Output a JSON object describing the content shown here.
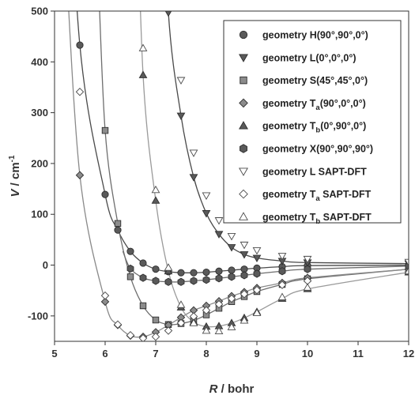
{
  "chart_data": {
    "type": "line",
    "xlabel": {
      "italic": "R",
      "rest": " / bohr"
    },
    "ylabel": {
      "italic": "V",
      "rest": " / cm",
      "sup": "-1"
    },
    "xlim": [
      5,
      12
    ],
    "ylim": [
      -150,
      500
    ],
    "xticks": [
      5,
      6,
      7,
      8,
      9,
      10,
      11,
      12
    ],
    "yticks": [
      -100,
      0,
      100,
      200,
      300,
      400,
      500
    ],
    "grid": false,
    "legend_position": "top-right",
    "series": [
      {
        "name": "geometry H(90°,90°,0°)",
        "legend": {
          "pre": "geometry H(90°,90°,0°)",
          "sub": "",
          "post": ""
        },
        "marker": "circle",
        "filled": true,
        "line_color": "#4a4a4a",
        "x": [
          5.5,
          6.0,
          6.25,
          6.5,
          6.75,
          7.0,
          7.25,
          7.5,
          7.75,
          8.0,
          8.25,
          8.5,
          8.75,
          9.0,
          9.5,
          10.0,
          12.0
        ],
        "y": [
          433,
          139,
          69,
          27,
          4,
          -8,
          -13,
          -15,
          -15,
          -14,
          -12,
          -10,
          -8,
          -6,
          -3,
          -1,
          0
        ]
      },
      {
        "name": "geometry L(0°,0°,0°)",
        "legend": {
          "pre": "geometry L(0°,0°,0°)",
          "sub": "",
          "post": ""
        },
        "marker": "triangle-down",
        "filled": true,
        "line_color": "#4a4a4a",
        "x": [
          7.25,
          7.5,
          7.75,
          8.0,
          8.25,
          8.5,
          8.75,
          9.0,
          9.5,
          10.0,
          12.0
        ],
        "y": [
          497,
          294,
          173,
          102,
          61,
          35,
          21,
          14,
          8,
          5,
          3
        ]
      },
      {
        "name": "geometry S(45°,45°,0°)",
        "legend": {
          "pre": "geometry S(45°,45°,0°)",
          "sub": "",
          "post": ""
        },
        "marker": "square",
        "filled": true,
        "line_color": "#6e6e6e",
        "x": [
          6.0,
          6.25,
          6.5,
          6.75,
          7.0,
          7.25,
          7.5,
          7.75,
          8.0,
          8.25,
          8.5,
          8.75,
          9.0,
          9.5,
          10.0,
          12.0
        ],
        "y": [
          265,
          82,
          -23,
          -80,
          -108,
          -117,
          -115,
          -109,
          -98,
          -85,
          -72,
          -62,
          -52,
          -38,
          -27,
          -8
        ]
      },
      {
        "name": "geometry Ta(90°,0°,0°)",
        "legend": {
          "pre": "geometry T",
          "sub": "a",
          "post": "(90°,0°,0°)"
        },
        "marker": "diamond",
        "filled": true,
        "line_color": "#8a8a8a",
        "x": [
          5.5,
          6.0,
          6.25,
          6.5,
          6.75,
          7.0,
          7.25,
          7.5,
          7.75,
          8.0,
          8.25,
          8.5,
          8.75,
          9.0,
          9.5,
          10.0,
          12.0
        ],
        "y": [
          177,
          -72,
          -118,
          -139,
          -141,
          -132,
          -118,
          -103,
          -89,
          -80,
          -71,
          -61,
          -53,
          -45,
          -35,
          -25,
          -8
        ]
      },
      {
        "name": "geometry Tb(0°,90°,0°)",
        "legend": {
          "pre": "geometry T",
          "sub": "b",
          "post": "(0°,90°,0°)"
        },
        "marker": "triangle-up",
        "filled": true,
        "line_color": "#9a9a9a",
        "x": [
          6.75,
          7.0,
          7.25,
          7.5,
          7.75,
          8.0,
          8.25,
          8.5,
          8.75,
          9.0,
          9.5,
          10.0,
          12.0
        ],
        "y": [
          374,
          127,
          -12,
          -83,
          -112,
          -121,
          -120,
          -114,
          -104,
          -92,
          -66,
          -47,
          -14
        ]
      },
      {
        "name": "geometry X(90°,90°,90°)",
        "legend": {
          "pre": "geometry X(90°,90°,90°)",
          "sub": "",
          "post": ""
        },
        "marker": "hexagon",
        "filled": true,
        "line_color": "#6e6e6e",
        "x": [
          6.5,
          6.75,
          7.0,
          7.25,
          7.5,
          7.75,
          8.0,
          8.25,
          8.5,
          8.75,
          9.0,
          9.5,
          10.0,
          12.0
        ],
        "y": [
          -7,
          -25,
          -31,
          -33,
          -33,
          -31,
          -29,
          -26,
          -23,
          -20,
          -17,
          -12,
          -8,
          -2
        ]
      },
      {
        "name": "geometry L SAPT-DFT",
        "legend": {
          "pre": "geometry L SAPT-DFT",
          "sub": "",
          "post": ""
        },
        "marker": "triangle-down",
        "filled": false,
        "line_color": null,
        "x": [
          7.5,
          7.75,
          8.0,
          8.25,
          8.5,
          8.75,
          9.0,
          9.5,
          10.0,
          12.0
        ],
        "y": [
          364,
          221,
          137,
          88,
          57,
          40,
          29,
          18,
          12,
          6
        ]
      },
      {
        "name": "geometry Ta SAPT-DFT",
        "legend": {
          "pre": "geometry T",
          "sub": "a",
          "post": " SAPT-DFT"
        },
        "marker": "diamond",
        "filled": false,
        "line_color": null,
        "x": [
          5.5,
          6.0,
          6.25,
          6.5,
          6.75,
          7.0,
          7.25,
          7.5,
          7.75,
          8.0,
          8.25,
          8.5,
          8.75,
          9.0,
          9.5,
          10.0,
          12.0
        ],
        "y": [
          341,
          -60,
          -117,
          -138,
          -144,
          -141,
          -129,
          -114,
          -101,
          -89,
          -77,
          -66,
          -57,
          -49,
          -39,
          -31,
          -13
        ]
      },
      {
        "name": "geometry Tb SAPT-DFT",
        "legend": {
          "pre": "geometry T",
          "sub": "b",
          "post": " SAPT-DFT"
        },
        "marker": "triangle-up",
        "filled": false,
        "line_color": null,
        "x": [
          6.75,
          7.0,
          7.25,
          7.5,
          7.75,
          8.0,
          8.25,
          8.5,
          8.75,
          9.0,
          9.5,
          10.0,
          12.0
        ],
        "y": [
          427,
          148,
          -5,
          -78,
          -114,
          -129,
          -130,
          -122,
          -109,
          -94,
          -63,
          -44,
          -12
        ]
      }
    ]
  }
}
